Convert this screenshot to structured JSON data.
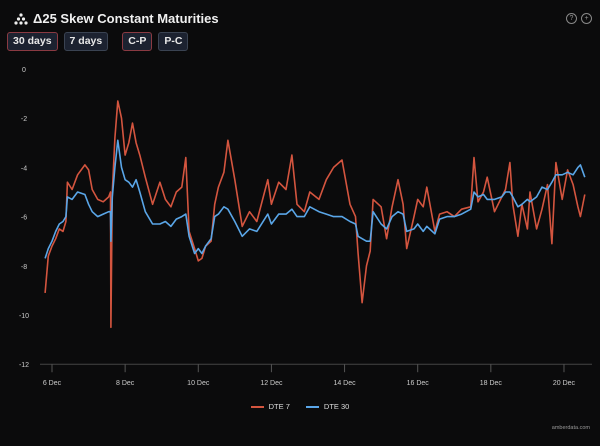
{
  "header": {
    "title": "Δ25 Skew Constant Maturities",
    "logo": "amberdata-logo-icon",
    "buttons": [
      {
        "label": "30 days",
        "active": true
      },
      {
        "label": "7 days",
        "active": false
      },
      {
        "label": "C-P",
        "active": true
      },
      {
        "label": "P-C",
        "active": false
      }
    ],
    "icons": {
      "help": "?",
      "expand": "+"
    }
  },
  "credit": "amberdata.com",
  "chart_data": {
    "type": "line",
    "title": "Δ25 Skew Constant Maturities",
    "xlabel": "",
    "ylabel": "",
    "ylim": [
      -12,
      0
    ],
    "yticks": [
      "0",
      "-2",
      "-4",
      "-6",
      "-8",
      "-10",
      "-12"
    ],
    "xticks": [
      {
        "day": 6,
        "label": "6 Dec"
      },
      {
        "day": 8,
        "label": "8 Dec"
      },
      {
        "day": 10,
        "label": "10 Dec"
      },
      {
        "day": 12,
        "label": "12 Dec"
      },
      {
        "day": 14,
        "label": "14 Dec"
      },
      {
        "day": 16,
        "label": "16 Dec"
      },
      {
        "day": 18,
        "label": "18 Dec"
      },
      {
        "day": 20,
        "label": "20 Dec"
      }
    ],
    "xlim": [
      5.8,
      20.6
    ],
    "legend_position": "bottom",
    "x": [
      5.81,
      5.9,
      6.0,
      6.1,
      6.2,
      6.3,
      6.38,
      6.42,
      6.55,
      6.7,
      6.9,
      7.0,
      7.1,
      7.25,
      7.4,
      7.55,
      7.6,
      7.61,
      7.65,
      7.72,
      7.8,
      7.9,
      8.0,
      8.1,
      8.2,
      8.3,
      8.4,
      8.55,
      8.75,
      8.95,
      9.1,
      9.25,
      9.4,
      9.55,
      9.66,
      9.75,
      9.9,
      10.0,
      10.1,
      10.2,
      10.35,
      10.45,
      10.55,
      10.7,
      10.81,
      11.0,
      11.2,
      11.4,
      11.6,
      11.9,
      12.0,
      12.2,
      12.4,
      12.56,
      12.7,
      12.9,
      13.05,
      13.3,
      13.5,
      13.7,
      13.93,
      14.15,
      14.3,
      14.37,
      14.48,
      14.6,
      14.7,
      14.78,
      15.0,
      15.15,
      15.3,
      15.46,
      15.6,
      15.7,
      15.9,
      16.0,
      16.15,
      16.25,
      16.47,
      16.6,
      16.8,
      17.0,
      17.2,
      17.45,
      17.54,
      17.65,
      17.8,
      17.9,
      18.1,
      18.3,
      18.4,
      18.52,
      18.6,
      18.74,
      18.85,
      19.0,
      19.07,
      19.25,
      19.4,
      19.55,
      19.67,
      19.78,
      19.95,
      20.1,
      20.25,
      20.38,
      20.45,
      20.57
    ],
    "series": [
      {
        "name": "DTE 7",
        "color": "#d4553f",
        "values": [
          -9.1,
          -7.6,
          -7.2,
          -6.9,
          -6.5,
          -6.6,
          -6.2,
          -4.6,
          -4.9,
          -4.3,
          -3.9,
          -4.1,
          -4.9,
          -5.3,
          -5.4,
          -5.2,
          -5.0,
          -10.5,
          -5.0,
          -2.8,
          -1.3,
          -2.0,
          -3.5,
          -3.0,
          -2.2,
          -3.0,
          -3.5,
          -4.4,
          -5.5,
          -4.6,
          -5.3,
          -5.6,
          -5.0,
          -4.8,
          -3.6,
          -6.6,
          -7.3,
          -7.8,
          -7.7,
          -7.2,
          -7.0,
          -5.5,
          -4.8,
          -4.2,
          -2.9,
          -4.5,
          -6.4,
          -5.8,
          -6.2,
          -4.5,
          -5.5,
          -4.6,
          -4.9,
          -3.5,
          -5.5,
          -5.8,
          -5.0,
          -5.3,
          -4.5,
          -4.0,
          -3.7,
          -5.5,
          -6.0,
          -7.5,
          -9.5,
          -8.0,
          -7.4,
          -5.3,
          -5.6,
          -6.9,
          -5.6,
          -4.5,
          -5.5,
          -7.3,
          -6.0,
          -5.3,
          -5.6,
          -4.8,
          -6.6,
          -5.9,
          -5.8,
          -6.0,
          -5.7,
          -5.6,
          -3.6,
          -5.4,
          -5.0,
          -4.4,
          -5.8,
          -5.2,
          -4.9,
          -3.8,
          -5.5,
          -6.8,
          -5.5,
          -6.5,
          -5.0,
          -6.5,
          -5.7,
          -4.7,
          -7.1,
          -3.8,
          -5.3,
          -4.1,
          -4.7,
          -5.6,
          -6.0,
          -5.1
        ]
      },
      {
        "name": "DTE 30",
        "color": "#5aa6e8",
        "values": [
          -7.7,
          -7.3,
          -7.0,
          -6.6,
          -6.3,
          -6.2,
          -6.0,
          -5.2,
          -5.3,
          -5.0,
          -5.1,
          -5.5,
          -5.8,
          -6.0,
          -5.9,
          -5.8,
          -5.8,
          -7.0,
          -5.2,
          -4.0,
          -2.9,
          -4.0,
          -4.5,
          -4.6,
          -4.8,
          -4.5,
          -5.0,
          -5.8,
          -6.3,
          -6.3,
          -6.2,
          -6.4,
          -6.1,
          -6.0,
          -5.9,
          -6.8,
          -7.5,
          -7.3,
          -7.5,
          -7.2,
          -6.9,
          -6.0,
          -5.9,
          -5.6,
          -5.7,
          -6.2,
          -6.8,
          -6.5,
          -6.6,
          -5.9,
          -6.3,
          -5.9,
          -5.9,
          -5.7,
          -6.0,
          -6.0,
          -5.6,
          -5.8,
          -5.9,
          -6.0,
          -6.0,
          -6.2,
          -6.3,
          -6.8,
          -6.9,
          -7.0,
          -7.0,
          -5.8,
          -6.3,
          -6.5,
          -6.0,
          -5.8,
          -5.9,
          -6.6,
          -6.5,
          -6.3,
          -6.6,
          -6.4,
          -6.7,
          -6.1,
          -6.0,
          -6.0,
          -5.9,
          -5.7,
          -5.0,
          -5.2,
          -5.1,
          -5.3,
          -5.3,
          -5.2,
          -5.0,
          -5.0,
          -5.2,
          -5.6,
          -5.5,
          -5.3,
          -5.4,
          -5.2,
          -4.8,
          -4.9,
          -4.6,
          -4.3,
          -4.3,
          -4.2,
          -4.3,
          -4.0,
          -3.9,
          -4.4
        ]
      }
    ]
  }
}
